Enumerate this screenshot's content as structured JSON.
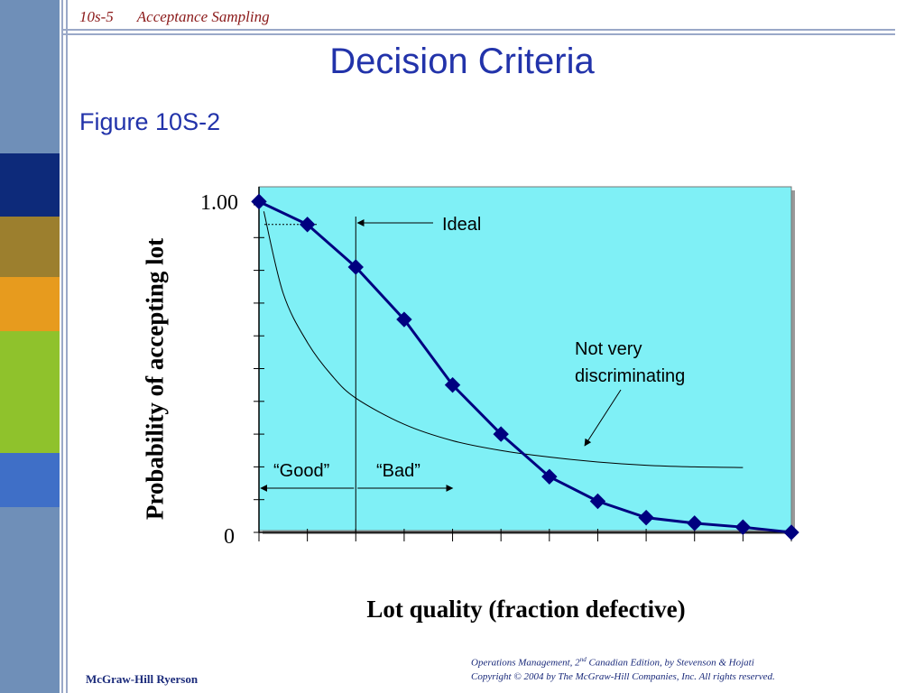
{
  "header": {
    "slide_number": "10s-5",
    "chapter": "Acceptance Sampling"
  },
  "title": "Decision Criteria",
  "subtitle": "Figure 10S-2",
  "footer": {
    "publisher": "McGraw-Hill Ryerson",
    "citation_prefix": "Operations Management, 2",
    "citation_sup": "nd",
    "citation_suffix": " Canadian Edition, by Stevenson & Hojati",
    "copyright": "Copyright © 2004 by The McGraw-Hill Companies, Inc.  All rights reserved."
  },
  "colors": {
    "sidebar": "#6f8fb8",
    "sidebar_blocks": [
      "#0d2a7a",
      "#9c7f2e",
      "#e79b1e",
      "#8fc22c",
      "#3f6fc7"
    ],
    "plot_background": "#7ff0f6",
    "curve": "#000080",
    "text_blue": "#2233aa"
  },
  "chart_data": {
    "type": "line",
    "xlabel": "Lot quality (fraction defective)",
    "ylabel": "Probability of accepting lot",
    "ytick_labels": {
      "top": "1.00",
      "bottom": "0"
    },
    "xlim": [
      0,
      11
    ],
    "ylim": [
      0,
      1
    ],
    "series": [
      {
        "x": [
          0,
          1,
          2,
          3,
          4,
          5,
          6,
          7,
          8,
          9,
          10,
          11
        ],
        "values": [
          1.01,
          0.94,
          0.81,
          0.65,
          0.45,
          0.3,
          0.17,
          0.095,
          0.045,
          0.028,
          0.016,
          0.0
        ],
        "marker": "diamond"
      }
    ],
    "not_very_discriminating_curve": {
      "x": [
        0.1,
        0.5,
        1,
        1.5,
        2,
        3,
        4,
        5,
        6,
        7,
        8,
        9,
        10
      ],
      "values": [
        0.98,
        0.73,
        0.58,
        0.48,
        0.41,
        0.33,
        0.28,
        0.25,
        0.23,
        0.215,
        0.205,
        0.2,
        0.198
      ]
    },
    "ideal_cutoff_x": 2,
    "annotations": {
      "ideal": "Ideal",
      "not_very_discriminating_line1": "Not very",
      "not_very_discriminating_line2": "discriminating",
      "good": "“Good”",
      "bad": "“Bad”"
    }
  }
}
